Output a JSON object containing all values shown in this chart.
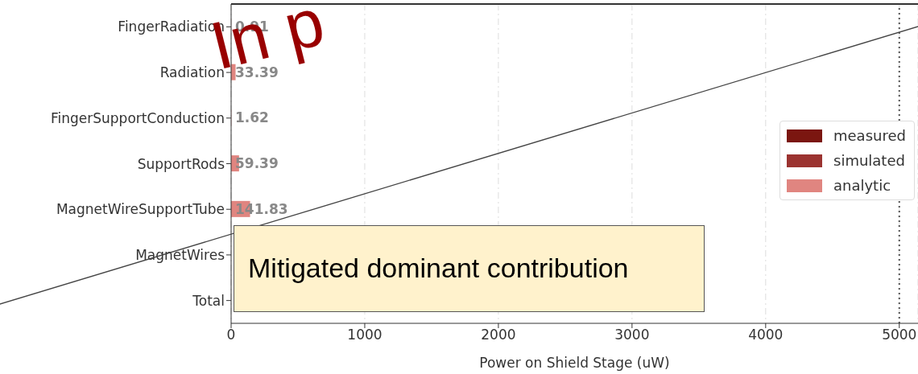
{
  "chart_data": {
    "type": "bar",
    "orientation": "horizontal",
    "categories": [
      "FingerRadiation",
      "Radiation",
      "FingerSupportConduction",
      "SupportRods",
      "MagnetWireSupportTube",
      "MagnetWires",
      "Total"
    ],
    "series": [
      {
        "name": "measured",
        "color": "#7b1610",
        "values": [
          null,
          null,
          null,
          null,
          null,
          null,
          null
        ]
      },
      {
        "name": "simulated",
        "color": "#9b3330",
        "values": [
          null,
          null,
          null,
          null,
          null,
          null,
          null
        ]
      },
      {
        "name": "analytic",
        "color": "#e08580",
        "values": [
          0.91,
          33.39,
          1.62,
          59.39,
          141.83,
          null,
          null
        ]
      }
    ],
    "data_labels": true,
    "xlabel": "Power on Shield Stage (uW)",
    "xlim": [
      0,
      5140
    ],
    "xticks": [
      0,
      1000,
      2000,
      3000,
      4000,
      5000
    ],
    "grid": "x",
    "legend": "right",
    "ref_lines": [
      {
        "axis": "x",
        "value": 5000,
        "line_style": "dotted",
        "color": "#555555"
      }
    ],
    "annotations": [
      "In p",
      "Mitigated dominant contribution"
    ]
  }
}
